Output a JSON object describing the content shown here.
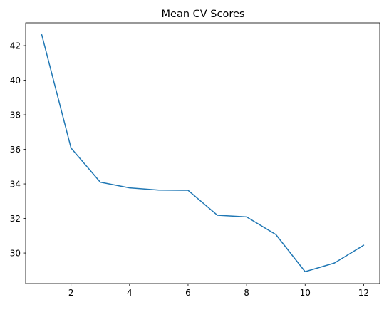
{
  "chart_data": {
    "type": "line",
    "title": "Mean CV Scores",
    "xlabel": "",
    "ylabel": "",
    "x": [
      1,
      2,
      3,
      4,
      5,
      6,
      7,
      8,
      9,
      10,
      11,
      12
    ],
    "series": [
      {
        "values": [
          42.63,
          36.08,
          34.1,
          33.77,
          33.64,
          33.63,
          32.19,
          32.09,
          31.07,
          28.92,
          29.42,
          30.45
        ],
        "color": "#1f77b4"
      }
    ],
    "xticks": [
      2,
      4,
      6,
      8,
      10,
      12
    ],
    "yticks": [
      30,
      32,
      34,
      36,
      38,
      40,
      42
    ],
    "xlim": [
      0.45,
      12.55
    ],
    "ylim": [
      28.23,
      43.32
    ],
    "grid": false,
    "legend": "none"
  }
}
